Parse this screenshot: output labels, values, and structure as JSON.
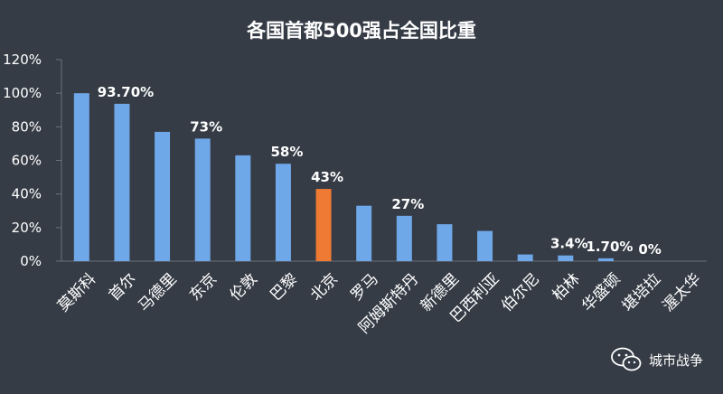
{
  "chart_data": {
    "type": "bar",
    "title": "各国首都500强占全国比重",
    "categories": [
      "莫斯科",
      "首尔",
      "马德里",
      "东京",
      "伦敦",
      "巴黎",
      "北京",
      "罗马",
      "阿姆斯特丹",
      "新德里",
      "巴西利亚",
      "伯尔尼",
      "柏林",
      "华盛顿",
      "堪培拉",
      "渥太华"
    ],
    "values": [
      100,
      93.7,
      77,
      73,
      63,
      58,
      43,
      33,
      27,
      22,
      18,
      4,
      3.4,
      1.7,
      0,
      0
    ],
    "data_labels": [
      "",
      "93.70%",
      "",
      "73%",
      "",
      "58%",
      "43%",
      "",
      "27%",
      "",
      "",
      "",
      "3.4%",
      "1.70%",
      "0%",
      ""
    ],
    "y_ticks": [
      "0%",
      "20%",
      "40%",
      "60%",
      "80%",
      "100%",
      "120%"
    ],
    "ylim": [
      0,
      120
    ],
    "highlight_index": 6,
    "colors": {
      "bar": "#6fa8e8",
      "highlight": "#ee7a33",
      "background": "#363c46",
      "axis": "#6b717b"
    }
  },
  "watermark": {
    "icon": "wechat-icon",
    "text": "城市战争"
  }
}
